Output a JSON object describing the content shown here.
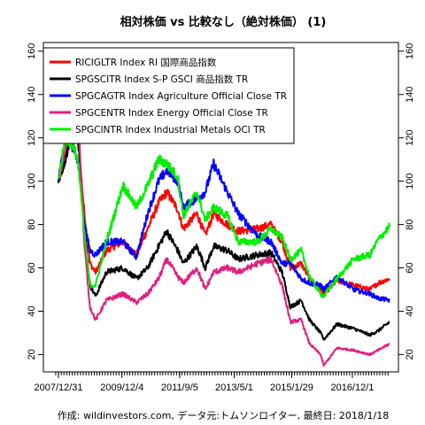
{
  "chart_data": {
    "type": "line",
    "title": "相対株価 vs 比較なし（絶対株価） (1)",
    "caption": "作成: wildinvestors.com, データ元:トムソンロイター, 最終日: 2018/1/18",
    "x_tick_labels": [
      "2007/12/31",
      "2009/12/4",
      "2011/9/5",
      "2013/5/1",
      "2015/1/29",
      "2016/12/1"
    ],
    "x_range": [
      "2007-12-31",
      "2018-01-18"
    ],
    "ylim": [
      12,
      164
    ],
    "y_ticks": [
      20,
      40,
      60,
      80,
      100,
      120,
      140,
      160
    ],
    "y_axis_sides": [
      "left",
      "right"
    ],
    "legend_position": "top-left",
    "grid": false,
    "series": [
      {
        "name": "RICIGLTR Index RI 国際商品指数",
        "color": "#ff0000",
        "points": [
          [
            "2007-12-31",
            100
          ],
          [
            "2008-03-15",
            110
          ],
          [
            "2008-07-01",
            125
          ],
          [
            "2008-08-15",
            115
          ],
          [
            "2008-10-15",
            85
          ],
          [
            "2008-12-15",
            62
          ],
          [
            "2009-02-15",
            58
          ],
          [
            "2009-06-15",
            68
          ],
          [
            "2009-12-15",
            72
          ],
          [
            "2010-05-15",
            66
          ],
          [
            "2010-09-15",
            78
          ],
          [
            "2011-01-15",
            90
          ],
          [
            "2011-04-15",
            95
          ],
          [
            "2011-08-15",
            87
          ],
          [
            "2011-10-15",
            78
          ],
          [
            "2012-03-15",
            85
          ],
          [
            "2012-06-15",
            75
          ],
          [
            "2012-09-15",
            85
          ],
          [
            "2013-02-15",
            80
          ],
          [
            "2013-06-15",
            77
          ],
          [
            "2014-01-15",
            78
          ],
          [
            "2014-06-15",
            80
          ],
          [
            "2014-10-15",
            72
          ],
          [
            "2015-01-15",
            60
          ],
          [
            "2015-05-15",
            62
          ],
          [
            "2015-08-15",
            55
          ],
          [
            "2015-12-15",
            50
          ],
          [
            "2016-01-20",
            48
          ],
          [
            "2016-06-15",
            54
          ],
          [
            "2016-12-15",
            52
          ],
          [
            "2017-06-15",
            50
          ],
          [
            "2017-09-15",
            53
          ],
          [
            "2018-01-18",
            55
          ]
        ]
      },
      {
        "name": "SPGSCITR Index S-P GSCI 商品指数 TR",
        "color": "#000000",
        "points": [
          [
            "2007-12-31",
            100
          ],
          [
            "2008-03-15",
            110
          ],
          [
            "2008-07-01",
            130
          ],
          [
            "2008-08-15",
            115
          ],
          [
            "2008-10-15",
            78
          ],
          [
            "2008-12-15",
            52
          ],
          [
            "2009-02-15",
            47
          ],
          [
            "2009-06-15",
            58
          ],
          [
            "2009-12-15",
            60
          ],
          [
            "2010-05-15",
            55
          ],
          [
            "2010-09-15",
            60
          ],
          [
            "2011-01-15",
            70
          ],
          [
            "2011-04-15",
            77
          ],
          [
            "2011-08-15",
            68
          ],
          [
            "2011-10-15",
            62
          ],
          [
            "2012-03-15",
            70
          ],
          [
            "2012-06-15",
            60
          ],
          [
            "2012-09-15",
            70
          ],
          [
            "2013-02-15",
            68
          ],
          [
            "2013-06-15",
            64
          ],
          [
            "2014-01-15",
            66
          ],
          [
            "2014-06-15",
            67
          ],
          [
            "2014-10-15",
            58
          ],
          [
            "2015-01-15",
            42
          ],
          [
            "2015-05-15",
            45
          ],
          [
            "2015-08-15",
            36
          ],
          [
            "2015-12-15",
            30
          ],
          [
            "2016-01-20",
            27
          ],
          [
            "2016-06-15",
            34
          ],
          [
            "2016-12-15",
            32
          ],
          [
            "2017-06-15",
            29
          ],
          [
            "2017-09-15",
            31
          ],
          [
            "2018-01-18",
            35
          ]
        ]
      },
      {
        "name": "SPGCAGTR Index Agriculture Official Close TR",
        "color": "#0000ff",
        "points": [
          [
            "2007-12-31",
            100
          ],
          [
            "2008-03-15",
            120
          ],
          [
            "2008-07-01",
            115
          ],
          [
            "2008-08-15",
            105
          ],
          [
            "2008-10-15",
            80
          ],
          [
            "2008-12-15",
            68
          ],
          [
            "2009-02-15",
            66
          ],
          [
            "2009-06-15",
            72
          ],
          [
            "2009-12-15",
            72
          ],
          [
            "2010-05-15",
            65
          ],
          [
            "2010-09-15",
            85
          ],
          [
            "2011-01-15",
            100
          ],
          [
            "2011-04-15",
            105
          ],
          [
            "2011-08-15",
            100
          ],
          [
            "2011-10-15",
            88
          ],
          [
            "2012-03-15",
            92
          ],
          [
            "2012-06-15",
            95
          ],
          [
            "2012-09-15",
            108
          ],
          [
            "2013-02-15",
            95
          ],
          [
            "2013-06-15",
            85
          ],
          [
            "2014-01-15",
            75
          ],
          [
            "2014-06-15",
            72
          ],
          [
            "2014-10-15",
            62
          ],
          [
            "2015-01-15",
            62
          ],
          [
            "2015-05-15",
            55
          ],
          [
            "2015-08-15",
            53
          ],
          [
            "2015-12-15",
            52
          ],
          [
            "2016-01-20",
            50
          ],
          [
            "2016-06-15",
            56
          ],
          [
            "2016-12-15",
            50
          ],
          [
            "2017-06-15",
            48
          ],
          [
            "2017-09-15",
            46
          ],
          [
            "2018-01-18",
            45
          ]
        ]
      },
      {
        "name": "SPGCENTR Index Energy Official Close TR",
        "color": "#e0207f",
        "points": [
          [
            "2007-12-31",
            100
          ],
          [
            "2008-03-15",
            115
          ],
          [
            "2008-07-01",
            150
          ],
          [
            "2008-08-15",
            125
          ],
          [
            "2008-10-15",
            70
          ],
          [
            "2008-12-15",
            42
          ],
          [
            "2009-02-15",
            36
          ],
          [
            "2009-06-15",
            45
          ],
          [
            "2009-12-15",
            48
          ],
          [
            "2010-05-15",
            44
          ],
          [
            "2010-09-15",
            48
          ],
          [
            "2011-01-15",
            55
          ],
          [
            "2011-04-15",
            64
          ],
          [
            "2011-08-15",
            56
          ],
          [
            "2011-10-15",
            53
          ],
          [
            "2012-03-15",
            60
          ],
          [
            "2012-06-15",
            50
          ],
          [
            "2012-09-15",
            58
          ],
          [
            "2013-02-15",
            60
          ],
          [
            "2013-06-15",
            58
          ],
          [
            "2014-01-15",
            62
          ],
          [
            "2014-06-15",
            64
          ],
          [
            "2014-10-15",
            52
          ],
          [
            "2015-01-15",
            35
          ],
          [
            "2015-05-15",
            36
          ],
          [
            "2015-08-15",
            25
          ],
          [
            "2015-12-15",
            20
          ],
          [
            "2016-01-20",
            15
          ],
          [
            "2016-06-15",
            23
          ],
          [
            "2016-12-15",
            22
          ],
          [
            "2017-06-15",
            20
          ],
          [
            "2017-09-15",
            22
          ],
          [
            "2018-01-18",
            25
          ]
        ]
      },
      {
        "name": "SPGCINTR Index Industrial Metals OCI TR",
        "color": "#00ee00",
        "points": [
          [
            "2007-12-31",
            100
          ],
          [
            "2008-03-15",
            120
          ],
          [
            "2008-07-01",
            115
          ],
          [
            "2008-08-15",
            105
          ],
          [
            "2008-10-15",
            75
          ],
          [
            "2008-12-15",
            52
          ],
          [
            "2009-02-15",
            52
          ],
          [
            "2009-06-15",
            72
          ],
          [
            "2009-12-15",
            98
          ],
          [
            "2010-05-15",
            88
          ],
          [
            "2010-09-15",
            98
          ],
          [
            "2011-01-15",
            110
          ],
          [
            "2011-04-15",
            108
          ],
          [
            "2011-08-15",
            102
          ],
          [
            "2011-10-15",
            84
          ],
          [
            "2012-03-15",
            95
          ],
          [
            "2012-06-15",
            82
          ],
          [
            "2012-09-15",
            88
          ],
          [
            "2013-02-15",
            84
          ],
          [
            "2013-06-15",
            72
          ],
          [
            "2014-01-15",
            72
          ],
          [
            "2014-06-15",
            78
          ],
          [
            "2014-10-15",
            74
          ],
          [
            "2015-01-15",
            64
          ],
          [
            "2015-05-15",
            68
          ],
          [
            "2015-08-15",
            56
          ],
          [
            "2015-12-15",
            48
          ],
          [
            "2016-01-20",
            47
          ],
          [
            "2016-06-15",
            55
          ],
          [
            "2016-12-15",
            64
          ],
          [
            "2017-06-15",
            66
          ],
          [
            "2017-09-15",
            73
          ],
          [
            "2018-01-18",
            79
          ]
        ]
      }
    ]
  }
}
